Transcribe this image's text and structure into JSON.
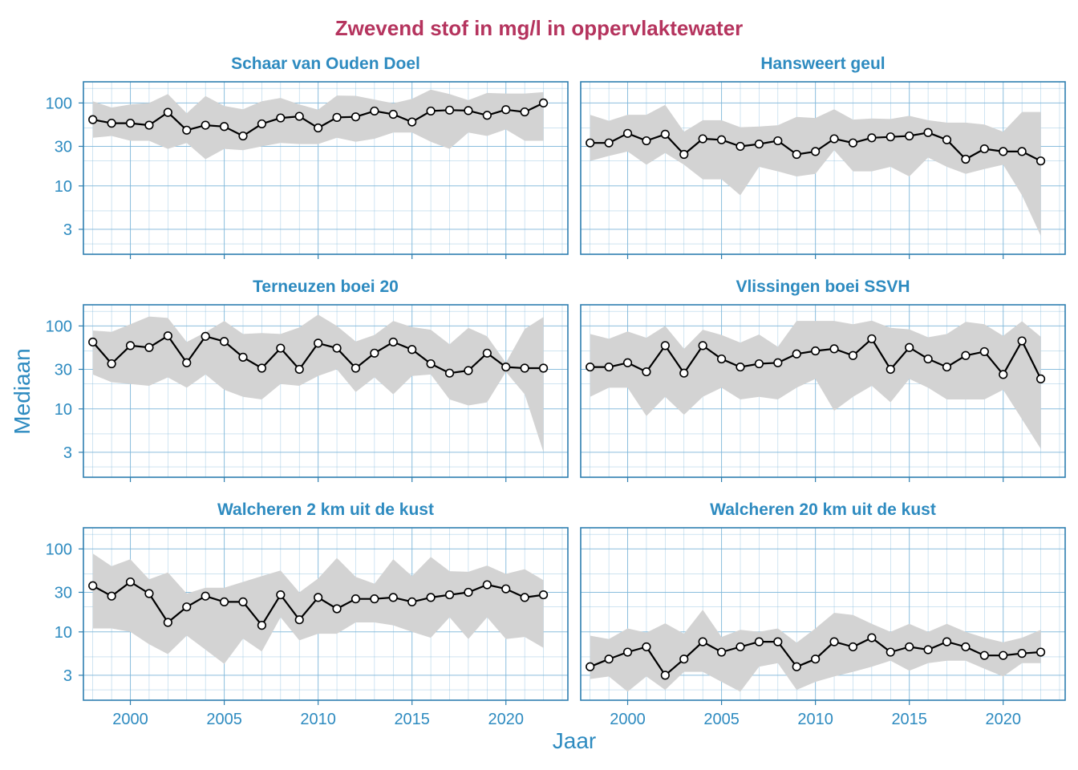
{
  "title": "Zwevend stof in mg/l in oppervlaktewater",
  "xlabel": "Jaar",
  "ylabel": "Mediaan",
  "colors": {
    "title": "#b5345e",
    "axis_text": "#2e8bc0",
    "panel_border": "#2e7fb0",
    "grid": "#7fb7da",
    "ribbon": "#d3d3d3",
    "line": "#000000",
    "marker_fill": "#ffffff"
  },
  "chart_data": {
    "type": "line",
    "scale_y": "log",
    "ylim": [
      1.5,
      180
    ],
    "y_ticks": [
      3,
      10,
      30,
      100
    ],
    "y_tick_labels": [
      "3",
      "10",
      "30",
      "100"
    ],
    "xlim": [
      1997.5,
      2023.3
    ],
    "x_ticks": [
      2000,
      2005,
      2010,
      2015,
      2020
    ],
    "x_tick_labels": [
      "2000",
      "2005",
      "2010",
      "2015",
      "2020"
    ],
    "x": [
      1998,
      1999,
      2000,
      2001,
      2002,
      2003,
      2004,
      2005,
      2006,
      2007,
      2008,
      2009,
      2010,
      2011,
      2012,
      2013,
      2014,
      2015,
      2016,
      2017,
      2018,
      2019,
      2020,
      2021,
      2022
    ],
    "grid": true,
    "ribbon": "gray band behind each median line",
    "panels": [
      {
        "name": "Schaar van Ouden Doel",
        "median": [
          63,
          57,
          57,
          54,
          77,
          47,
          54,
          52,
          40,
          56,
          66,
          69,
          50,
          67,
          68,
          80,
          73,
          59,
          80,
          82,
          81,
          71,
          83,
          78,
          100
        ],
        "lower": [
          38,
          40,
          35,
          35,
          28,
          33,
          21,
          28,
          27,
          30,
          33,
          32,
          32,
          38,
          34,
          37,
          44,
          44,
          34,
          28,
          44,
          40,
          48,
          35,
          35
        ],
        "upper": [
          105,
          88,
          96,
          100,
          128,
          75,
          121,
          92,
          84,
          105,
          115,
          96,
          83,
          123,
          122,
          110,
          99,
          112,
          145,
          128,
          108,
          132,
          130,
          130,
          135
        ]
      },
      {
        "name": "Hansweert geul",
        "median": [
          33,
          33,
          43,
          35,
          42,
          24,
          37,
          36,
          30,
          32,
          35,
          24,
          26,
          37,
          33,
          38,
          39,
          40,
          44,
          36,
          21,
          28,
          26,
          26,
          20
        ],
        "lower": [
          20,
          23,
          26,
          18,
          25,
          18,
          12,
          12,
          7.7,
          17,
          15,
          13,
          14,
          27,
          15,
          15,
          17,
          13,
          22,
          17,
          14,
          16,
          18,
          7.7,
          2.5
        ],
        "upper": [
          72,
          61,
          72,
          72,
          95,
          45,
          62,
          62,
          51,
          52,
          54,
          68,
          66,
          84,
          63,
          65,
          64,
          70,
          62,
          58,
          58,
          55,
          45,
          78,
          78
        ]
      },
      {
        "name": "Terneuzen boei 20",
        "median": [
          64,
          35,
          58,
          55,
          76,
          36,
          75,
          65,
          42,
          31,
          54,
          30,
          62,
          54,
          31,
          47,
          64,
          52,
          35,
          27,
          29,
          47,
          32,
          31,
          31
        ],
        "lower": [
          26,
          21,
          20,
          19,
          24,
          18,
          26,
          17,
          14,
          13,
          20,
          19,
          25,
          30,
          16,
          24,
          15,
          25,
          26,
          13,
          11,
          12,
          28,
          15,
          3
        ],
        "upper": [
          88,
          85,
          105,
          130,
          125,
          64,
          84,
          115,
          80,
          82,
          80,
          96,
          137,
          100,
          65,
          78,
          115,
          97,
          90,
          60,
          95,
          75,
          36,
          92,
          128
        ]
      },
      {
        "name": "Vlissingen boei SSVH",
        "median": [
          32,
          32,
          36,
          28,
          58,
          27,
          58,
          40,
          32,
          35,
          36,
          46,
          50,
          53,
          44,
          70,
          30,
          55,
          40,
          32,
          44,
          49,
          26,
          66,
          23
        ],
        "lower": [
          14,
          18,
          18,
          8.2,
          14,
          8.5,
          14,
          18,
          13,
          14,
          13,
          18,
          23,
          9.5,
          14,
          19,
          12,
          23,
          18,
          13,
          13,
          13,
          17,
          7.5,
          3.3
        ],
        "upper": [
          80,
          70,
          86,
          72,
          100,
          53,
          90,
          78,
          63,
          79,
          56,
          115,
          115,
          115,
          105,
          116,
          95,
          91,
          73,
          80,
          112,
          105,
          76,
          114,
          74
        ]
      },
      {
        "name": "Walcheren 2 km uit de kust",
        "median": [
          36,
          27,
          40,
          29,
          13,
          20,
          27,
          23,
          23,
          12,
          28,
          14,
          26,
          19,
          25,
          25,
          26,
          23,
          26,
          28,
          30,
          37,
          33,
          26,
          28
        ],
        "lower": [
          11,
          11,
          10,
          7.1,
          5.4,
          9,
          6.1,
          4.1,
          8.3,
          5.8,
          15,
          7.9,
          9.5,
          9.5,
          13,
          13,
          12,
          10,
          8.5,
          15,
          8.2,
          15,
          8.2,
          8.7,
          6.4
        ],
        "upper": [
          88,
          62,
          75,
          43,
          52,
          29,
          34,
          34,
          40,
          47,
          55,
          30,
          44,
          78,
          46,
          38,
          75,
          47,
          80,
          54,
          53,
          63,
          50,
          57,
          42
        ]
      },
      {
        "name": "Walcheren 20 km uit de kust",
        "median": [
          3.8,
          4.7,
          5.7,
          6.6,
          3,
          4.7,
          7.6,
          5.7,
          6.6,
          7.6,
          7.6,
          3.8,
          4.7,
          7.6,
          6.6,
          8.5,
          5.7,
          6.6,
          6.1,
          7.6,
          6.6,
          5.2,
          5.2,
          5.5,
          5.7
        ],
        "lower": [
          2.7,
          2.9,
          1.9,
          2.9,
          2,
          3.3,
          3.3,
          2.5,
          1.9,
          3.8,
          4.2,
          2,
          2.5,
          2.9,
          3.3,
          3.8,
          4.5,
          3.4,
          4.2,
          4.5,
          4.5,
          3.6,
          2.9,
          4.2,
          4.2
        ]
      }
    ]
  }
}
